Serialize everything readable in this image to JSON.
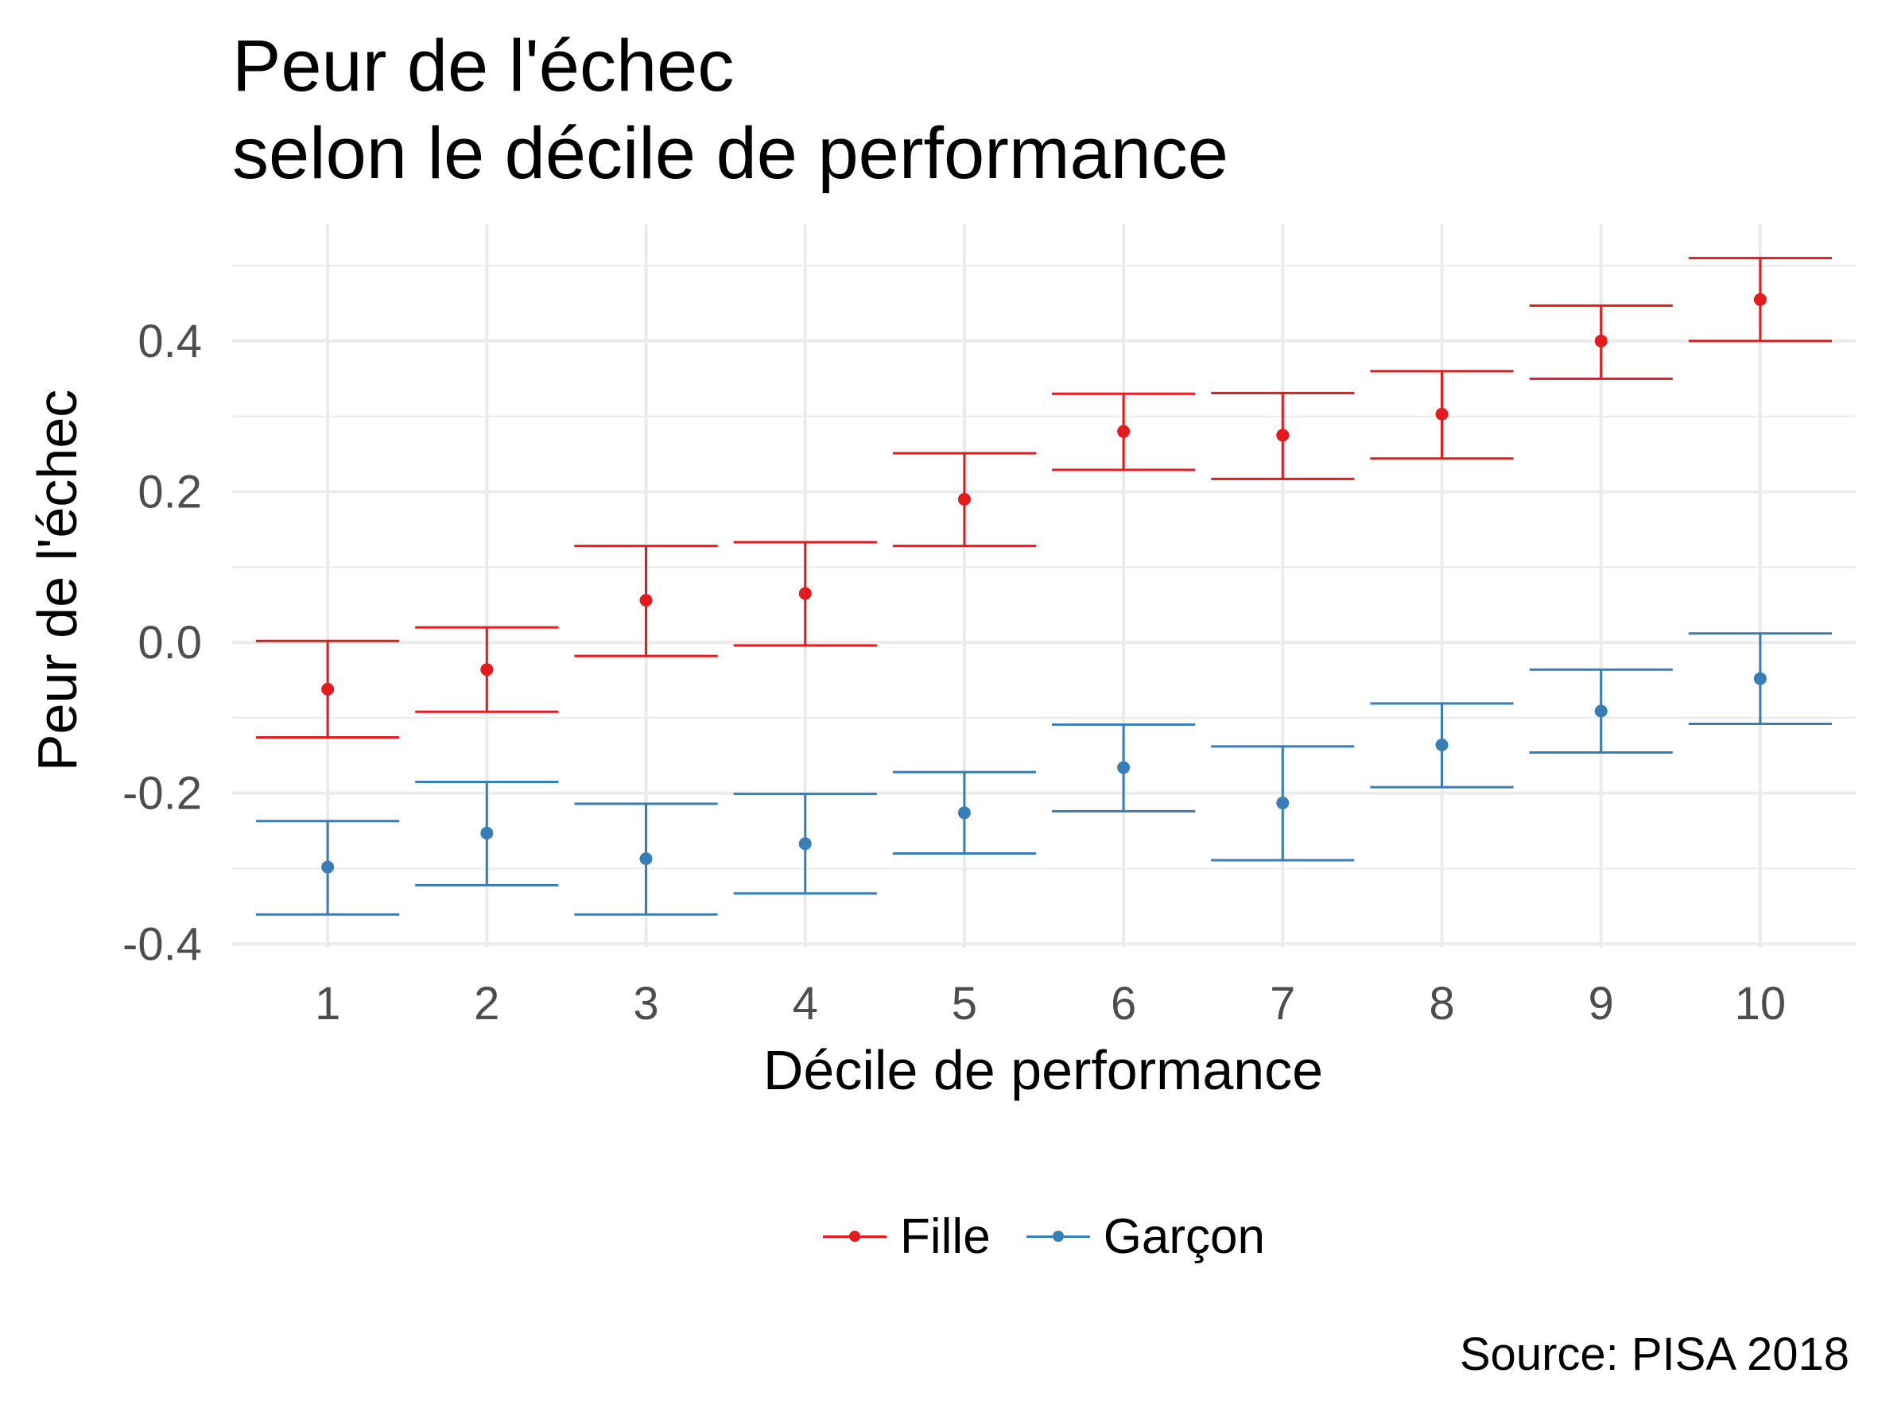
{
  "title_lines": [
    "Peur de l'échec",
    "selon le décile de performance"
  ],
  "caption": "Source: PISA 2018",
  "colors": {
    "Fille": "#e41a1c",
    "Garçon": "#377eb8",
    "grid": "#ebebeb"
  },
  "chart_data": {
    "type": "scatter",
    "title": "Peur de l'échec\nselon le décile de performance",
    "xlabel": "Décile de performance",
    "ylabel": "Peur de l'échec",
    "x": [
      1,
      2,
      3,
      4,
      5,
      6,
      7,
      8,
      9,
      10
    ],
    "x_tick_labels": [
      "1",
      "2",
      "3",
      "4",
      "5",
      "6",
      "7",
      "8",
      "9",
      "10"
    ],
    "y_ticks": [
      -0.4,
      -0.2,
      0.0,
      0.2,
      0.4
    ],
    "y_tick_labels": [
      "-0.4",
      "-0.2",
      "0.0",
      "0.2",
      "0.4"
    ],
    "xlim": [
      0.4,
      10.6
    ],
    "ylim": [
      -0.405,
      0.555
    ],
    "grid": true,
    "legend_position": "bottom",
    "error_bars": true,
    "series": [
      {
        "name": "Fille",
        "color": "#e41a1c",
        "values": [
          -0.062,
          -0.036,
          0.056,
          0.065,
          0.19,
          0.28,
          0.275,
          0.303,
          0.4,
          0.455
        ],
        "lower": [
          -0.126,
          -0.092,
          -0.018,
          -0.004,
          0.128,
          0.229,
          0.217,
          0.244,
          0.35,
          0.4
        ],
        "upper": [
          0.002,
          0.02,
          0.128,
          0.133,
          0.251,
          0.33,
          0.331,
          0.36,
          0.447,
          0.51
        ]
      },
      {
        "name": "Garçon",
        "color": "#377eb8",
        "values": [
          -0.298,
          -0.253,
          -0.287,
          -0.267,
          -0.226,
          -0.166,
          -0.213,
          -0.136,
          -0.091,
          -0.048
        ],
        "lower": [
          -0.361,
          -0.322,
          -0.361,
          -0.333,
          -0.28,
          -0.224,
          -0.289,
          -0.192,
          -0.146,
          -0.108
        ],
        "upper": [
          -0.237,
          -0.185,
          -0.214,
          -0.201,
          -0.172,
          -0.109,
          -0.138,
          -0.081,
          -0.036,
          0.012
        ]
      }
    ]
  }
}
